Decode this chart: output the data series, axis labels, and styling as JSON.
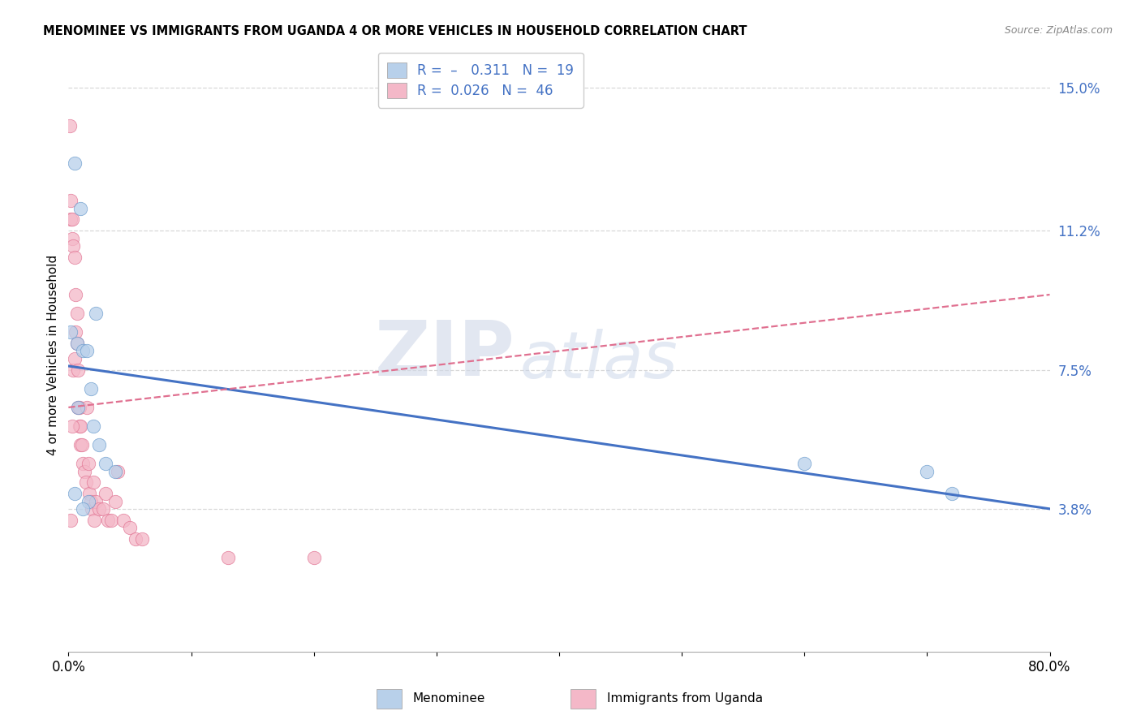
{
  "title": "MENOMINEE VS IMMIGRANTS FROM UGANDA 4 OR MORE VEHICLES IN HOUSEHOLD CORRELATION CHART",
  "source": "Source: ZipAtlas.com",
  "ylabel": "4 or more Vehicles in Household",
  "xlim": [
    0,
    0.8
  ],
  "ylim": [
    0,
    0.158
  ],
  "yticks": [
    0.038,
    0.075,
    0.112,
    0.15
  ],
  "ytick_labels": [
    "3.8%",
    "7.5%",
    "11.2%",
    "15.0%"
  ],
  "xticks": [
    0.0,
    0.1,
    0.2,
    0.3,
    0.4,
    0.5,
    0.6,
    0.7,
    0.8
  ],
  "xtick_labels": [
    "0.0%",
    "",
    "",
    "",
    "",
    "",
    "",
    "",
    "80.0%"
  ],
  "menominee": {
    "name": "Menominee",
    "R": -0.311,
    "N": 19,
    "dot_color": "#b8d0ea",
    "dot_edge": "#6699cc",
    "line_color": "#4472c4",
    "x": [
      0.005,
      0.01,
      0.022,
      0.002,
      0.007,
      0.012,
      0.015,
      0.018,
      0.008,
      0.02,
      0.025,
      0.03,
      0.038,
      0.005,
      0.016,
      0.012,
      0.6,
      0.7,
      0.72
    ],
    "y": [
      0.13,
      0.118,
      0.09,
      0.085,
      0.082,
      0.08,
      0.08,
      0.07,
      0.065,
      0.06,
      0.055,
      0.05,
      0.048,
      0.042,
      0.04,
      0.038,
      0.05,
      0.048,
      0.042
    ]
  },
  "uganda": {
    "name": "Immigrants from Uganda",
    "R": 0.026,
    "N": 46,
    "dot_color": "#f4b8c8",
    "dot_edge": "#e07090",
    "line_color": "#e07090",
    "x": [
      0.001,
      0.002,
      0.002,
      0.003,
      0.003,
      0.004,
      0.004,
      0.005,
      0.005,
      0.006,
      0.006,
      0.007,
      0.007,
      0.008,
      0.008,
      0.009,
      0.009,
      0.01,
      0.01,
      0.011,
      0.012,
      0.013,
      0.014,
      0.015,
      0.016,
      0.017,
      0.018,
      0.019,
      0.02,
      0.021,
      0.022,
      0.025,
      0.028,
      0.03,
      0.032,
      0.035,
      0.038,
      0.04,
      0.045,
      0.05,
      0.055,
      0.06,
      0.13,
      0.2,
      0.003,
      0.002
    ],
    "y": [
      0.14,
      0.12,
      0.115,
      0.115,
      0.11,
      0.108,
      0.075,
      0.105,
      0.078,
      0.095,
      0.085,
      0.09,
      0.082,
      0.075,
      0.065,
      0.065,
      0.06,
      0.06,
      0.055,
      0.055,
      0.05,
      0.048,
      0.045,
      0.065,
      0.05,
      0.042,
      0.04,
      0.038,
      0.045,
      0.035,
      0.04,
      0.038,
      0.038,
      0.042,
      0.035,
      0.035,
      0.04,
      0.048,
      0.035,
      0.033,
      0.03,
      0.03,
      0.025,
      0.025,
      0.06,
      0.035
    ]
  },
  "trend_menominee": {
    "x_start": 0.0,
    "x_end": 0.8,
    "y_start": 0.076,
    "y_end": 0.038
  },
  "trend_uganda": {
    "x_start": 0.0,
    "x_end": 0.8,
    "y_start": 0.065,
    "y_end": 0.095
  },
  "watermark_zip": "ZIP",
  "watermark_atlas": "atlas",
  "background_color": "#ffffff",
  "grid_color": "#d8d8d8"
}
